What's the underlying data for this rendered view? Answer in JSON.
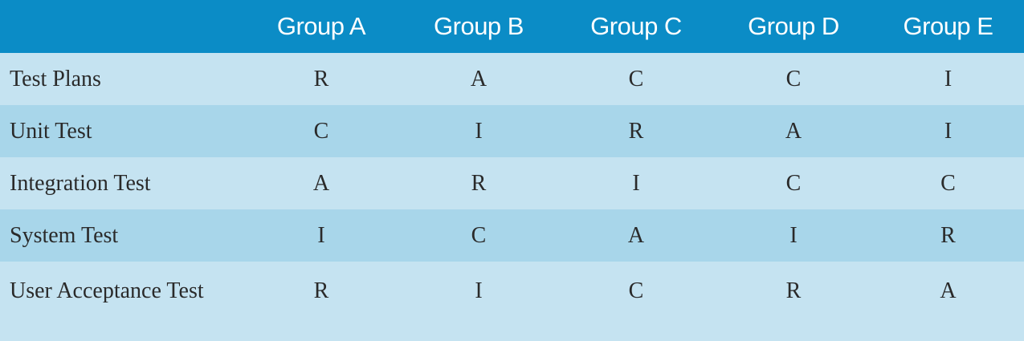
{
  "table": {
    "header": [
      "Group A",
      "Group B",
      "Group C",
      "Group D",
      "Group E"
    ],
    "rows": [
      [
        "Test Plans",
        "R",
        "A",
        "C",
        "C",
        "I"
      ],
      [
        "Unit Test",
        "C",
        "I",
        "R",
        "A",
        "I"
      ],
      [
        "Integration Test",
        "A",
        "R",
        "I",
        "C",
        "C"
      ],
      [
        "System Test",
        "I",
        "C",
        "A",
        "I",
        "R"
      ],
      [
        "User Acceptance Test",
        "R",
        "I",
        "C",
        "R",
        "A"
      ]
    ]
  }
}
